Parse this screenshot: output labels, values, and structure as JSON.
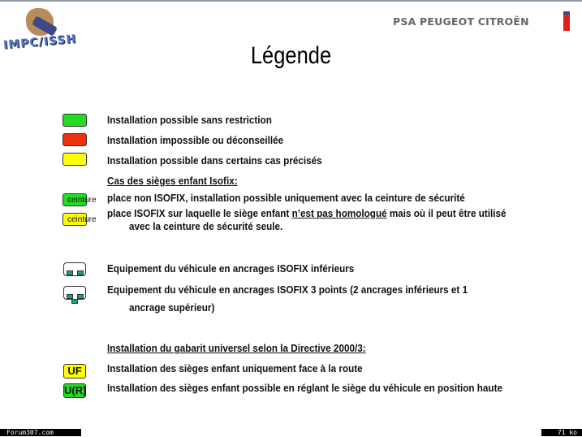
{
  "header": {
    "logo_left_text": "IMPC/ISSH",
    "logo_right_text": "PSA PEUGEOT CITROËN",
    "title": "Légende"
  },
  "legend": {
    "colors": {
      "green": "#22dd22",
      "red": "#ee3311",
      "yellow": "#ffff00",
      "isofix": "#1aa37a"
    },
    "items": [
      {
        "label": "Installation possible sans restriction"
      },
      {
        "label": "Installation impossible ou déconseillée"
      },
      {
        "label": "Installation possible dans certains cas précisés"
      }
    ],
    "isofix_heading": "Cas des sièges enfant Isofix:",
    "ceinture_label": "ceinture",
    "isofix_items": [
      {
        "label": "place non ISOFIX, installation possible uniquement avec la ceinture de sécurité"
      },
      {
        "label_before": "place ISOFIX sur laquelle le siège enfant ",
        "label_underlined": "n’est pas homologué",
        "label_after": " mais où il peut être utilisé",
        "label_line2": "avec la ceinture de sécurité seule."
      }
    ],
    "anchor_items": [
      {
        "label": "Equipement du véhicule en ancrages ISOFIX inférieurs"
      },
      {
        "label": "Equipement du véhicule en ancrages ISOFIX 3 points (2 ancrages inférieurs et 1",
        "label_line2": "ancrage supérieur)"
      }
    ],
    "universal_heading": "Installation du gabarit universel selon la Directive 2000/3:",
    "universal_items": [
      {
        "badge": "UF",
        "label": "Installation des sièges enfant uniquement face à la route"
      },
      {
        "badge": "U(R)",
        "label": "Installation des sièges enfant possible en réglant le siège du véhicule en position haute"
      }
    ]
  },
  "footer": {
    "left": "Forum307.com",
    "right": "71 ko"
  }
}
